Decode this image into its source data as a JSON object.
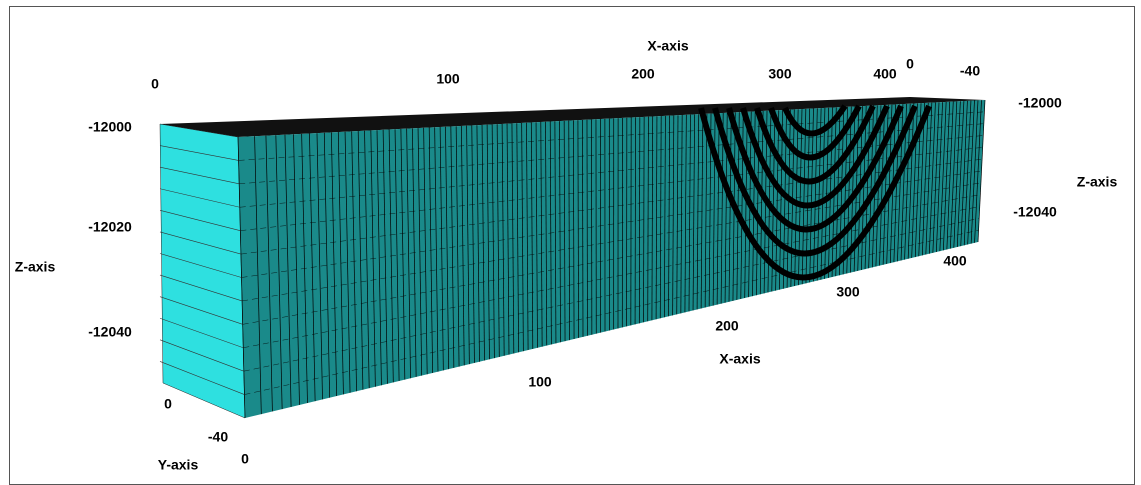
{
  "top_x_axis": {
    "label": "X-axis",
    "ticks": [
      0,
      100,
      200,
      300,
      400
    ]
  },
  "top_y_axis": {
    "ticks": [
      0,
      -40
    ]
  },
  "left_z_axis": {
    "label": "Z-axis",
    "ticks": [
      -12000,
      -12020,
      -12040
    ]
  },
  "right_z_axis": {
    "label": "Z-axis",
    "ticks": [
      -12000,
      -12040
    ]
  },
  "bottom_x_axis": {
    "label": "X-axis",
    "ticks": [
      0,
      100,
      200,
      300,
      400
    ]
  },
  "left_y_axis": {
    "label": "Y-axis",
    "ticks": [
      0,
      -40
    ]
  }
}
